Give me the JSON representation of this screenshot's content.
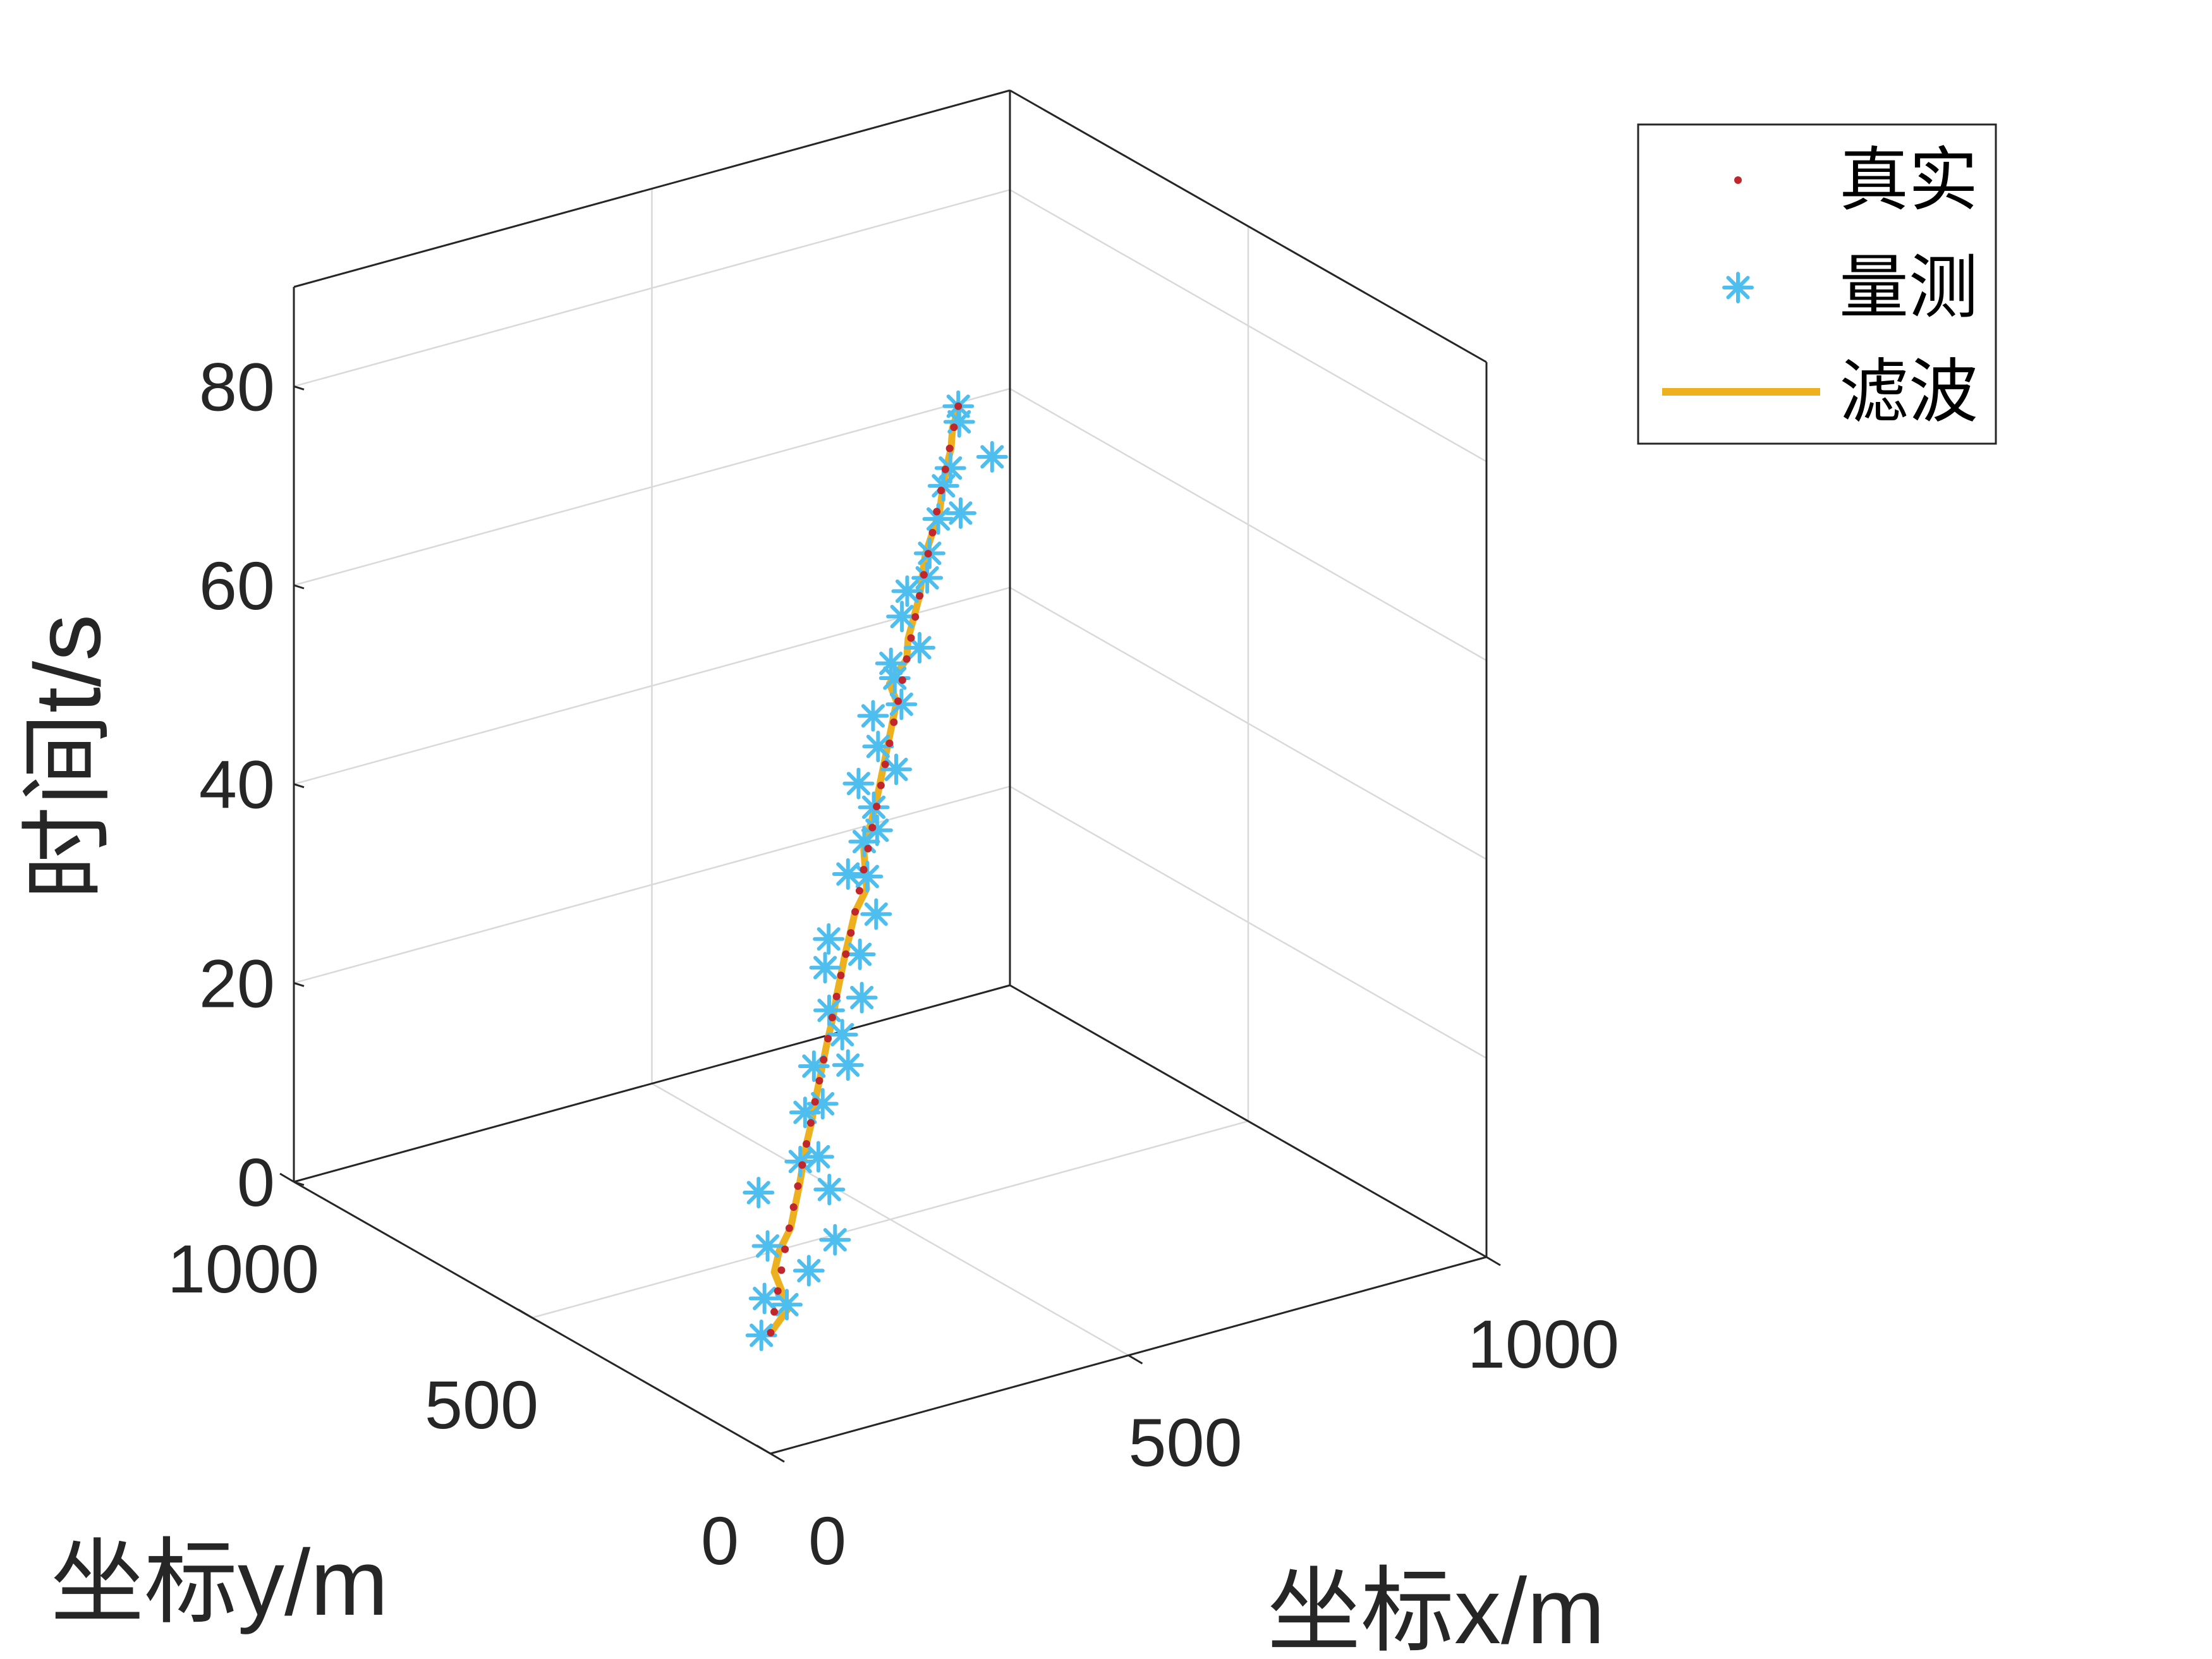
{
  "chart_data": {
    "type": "line3d",
    "xlabel": "坐标x/m",
    "ylabel": "坐标y/m",
    "zlabel": "时间t/s",
    "xlim": [
      0,
      1000
    ],
    "ylim": [
      0,
      1000
    ],
    "zlim": [
      0,
      90
    ],
    "xticks": [
      0,
      500,
      1000
    ],
    "yticks": [
      0,
      500,
      1000
    ],
    "zticks": [
      0,
      20,
      40,
      60,
      80
    ],
    "grid": true,
    "legend_position": "top-right",
    "colors": {
      "true": "#c0272d",
      "measured": "#4dbeee",
      "filtered": "#edb120"
    },
    "series": [
      {
        "name": "真实",
        "marker": "dot",
        "t": [
          0,
          2,
          4,
          6,
          8,
          10,
          12,
          14,
          16,
          18,
          20,
          22,
          24,
          26,
          28,
          30,
          32,
          34,
          36,
          38,
          40,
          42,
          44,
          46,
          48,
          50,
          52,
          54,
          56,
          58,
          60,
          62,
          64,
          66,
          68,
          70,
          72,
          74,
          76,
          78,
          80,
          82,
          84,
          86,
          88
        ],
        "x": [
          200,
          205,
          210,
          215,
          220,
          226,
          232,
          238,
          244,
          250,
          256,
          262,
          268,
          274,
          280,
          286,
          292,
          298,
          305,
          312,
          318,
          324,
          330,
          336,
          342,
          348,
          354,
          360,
          366,
          372,
          378,
          384,
          390,
          396,
          402,
          408,
          414,
          420,
          426,
          432,
          438,
          444,
          450,
          456,
          462
        ],
        "y": [
          300,
          300,
          300,
          300,
          300,
          300,
          300,
          300,
          300,
          300,
          300,
          300,
          300,
          300,
          300,
          300,
          300,
          300,
          300,
          300,
          300,
          300,
          300,
          300,
          300,
          300,
          300,
          300,
          300,
          300,
          300,
          300,
          300,
          300,
          300,
          300,
          300,
          300,
          300,
          300,
          300,
          300,
          300,
          300,
          300
        ]
      },
      {
        "name": "量测",
        "marker": "asterisk",
        "t": [
          0,
          2,
          4,
          6,
          8,
          10,
          12,
          14,
          16,
          18,
          20,
          22,
          24,
          26,
          28,
          30,
          32,
          34,
          36,
          38,
          40,
          42,
          44,
          46,
          48,
          50,
          52,
          54,
          56,
          58,
          60,
          62,
          64,
          66,
          68,
          70,
          72,
          74,
          76,
          78,
          80,
          82,
          84,
          86,
          88
        ],
        "x": [
          187,
          218,
          196,
          240,
          209,
          250,
          223,
          262,
          248,
          240,
          268,
          266,
          287,
          288,
          300,
          295,
          314,
          296,
          318,
          281,
          334,
          355,
          308,
          344,
          342,
          344,
          336,
          362,
          350,
          363,
          376,
          380,
          368,
          388,
          390,
          404,
          412,
          422,
          454,
          452,
          448,
          451,
          476,
          470,
          462
        ],
        "y": [
          300,
          340,
          260,
          280,
          320,
          240,
          360,
          270,
          310,
          260,
          330,
          290,
          340,
          270,
          300,
          320,
          280,
          330,
          290,
          300,
          280,
          330,
          300,
          320,
          290,
          300,
          320,
          280,
          300,
          330,
          290,
          310,
          300,
          270,
          310,
          320,
          290,
          300,
          330,
          280,
          310,
          300,
          250,
          310,
          300
        ]
      },
      {
        "name": "滤波",
        "marker": "line",
        "t": [
          0,
          2,
          4,
          6,
          8,
          10,
          12,
          14,
          16,
          18,
          20,
          22,
          24,
          26,
          28,
          30,
          32,
          34,
          36,
          38,
          40,
          42,
          44,
          46,
          48,
          50,
          52,
          54,
          56,
          58,
          60,
          62,
          64,
          66,
          68,
          70,
          72,
          74,
          76,
          78,
          80,
          82,
          84,
          86,
          88
        ],
        "x": [
          200,
          225,
          215,
          205,
          212,
          228,
          234,
          240,
          245,
          250,
          257,
          262,
          268,
          274,
          280,
          287,
          292,
          298,
          304,
          311,
          318,
          334,
          332,
          330,
          338,
          346,
          352,
          358,
          364,
          370,
          376,
          366,
          390,
          392,
          400,
          408,
          412,
          416,
          426,
          436,
          440,
          445,
          452,
          454,
          464
        ],
        "y": [
          300,
          300,
          300,
          300,
          300,
          300,
          300,
          300,
          300,
          300,
          300,
          300,
          300,
          300,
          300,
          300,
          300,
          300,
          300,
          300,
          300,
          300,
          300,
          300,
          300,
          300,
          300,
          300,
          300,
          300,
          300,
          300,
          300,
          300,
          300,
          300,
          300,
          300,
          300,
          300,
          300,
          300,
          300,
          300,
          300
        ]
      }
    ]
  }
}
